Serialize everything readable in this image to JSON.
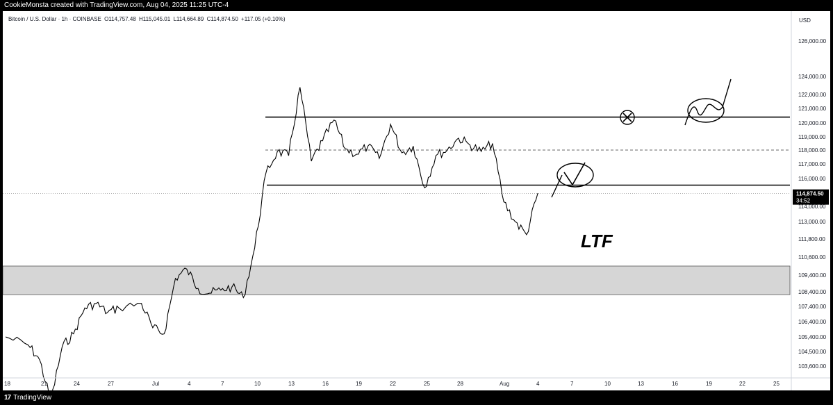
{
  "header": {
    "credit": "CookieMonsta created with TradingView.com, Aug 04, 2025 11:25 UTC-4"
  },
  "legend": {
    "symbol": "Bitcoin / U.S. Dollar · 1h · COINBASE",
    "open": "O114,757.48",
    "high": "H115,045.01",
    "low": "L114,664.89",
    "close": "C114,874.50",
    "change": "+117.05 (+0.10%)"
  },
  "footer": {
    "brand": "TradingView",
    "logo_mark": "17"
  },
  "annotation": {
    "ltf_label": "LTF"
  },
  "chart_data": {
    "type": "line",
    "title": "Bitcoin / U.S. Dollar · 1h · COINBASE",
    "currency_label": "USD",
    "y_ticks": [
      126000,
      124000,
      122000,
      121000,
      120000,
      119000,
      118000,
      117000,
      116000,
      115000,
      114000,
      113000,
      111800,
      110600,
      109400,
      108400,
      107400,
      106400,
      105400,
      104500,
      103600
    ],
    "y_tick_labels": [
      "126,000.00",
      "124,000.00",
      "122,000.00",
      "121,000.00",
      "120,000.00",
      "119,000.00",
      "118,000.00",
      "117,000.00",
      "116,000.00",
      "115,000.00",
      "114,000.00",
      "113,000.00",
      "111,800.00",
      "110,600.00",
      "109,400.00",
      "108,400.00",
      "107,400.00",
      "106,400.00",
      "105,400.00",
      "104,500.00",
      "103,600.00"
    ],
    "x_tick_labels": [
      "18",
      "21",
      "24",
      "27",
      "Jul",
      "4",
      "7",
      "10",
      "13",
      "16",
      "19",
      "22",
      "25",
      "28",
      "Aug",
      "4",
      "7",
      "10",
      "13",
      "16",
      "19",
      "22",
      "25"
    ],
    "price_series": [
      [
        "06-18",
        105400
      ],
      [
        "06-20",
        104900
      ],
      [
        "06-21",
        104000
      ],
      [
        "06-22",
        101500
      ],
      [
        "06-23",
        104800
      ],
      [
        "06-24",
        105600
      ],
      [
        "06-25",
        107300
      ],
      [
        "06-26",
        107600
      ],
      [
        "06-27",
        107000
      ],
      [
        "06-28",
        107300
      ],
      [
        "06-30",
        107600
      ],
      [
        "07-01",
        106000
      ],
      [
        "07-02",
        105600
      ],
      [
        "07-03",
        109200
      ],
      [
        "07-04",
        109800
      ],
      [
        "07-05",
        108600
      ],
      [
        "07-06",
        108300
      ],
      [
        "07-07",
        108500
      ],
      [
        "07-08",
        108700
      ],
      [
        "07-09",
        108000
      ],
      [
        "07-10",
        111200
      ],
      [
        "07-11",
        116400
      ],
      [
        "07-12",
        117900
      ],
      [
        "07-13",
        117600
      ],
      [
        "07-14",
        122800
      ],
      [
        "07-15",
        117200
      ],
      [
        "07-16",
        118700
      ],
      [
        "07-17",
        120200
      ],
      [
        "07-18",
        118100
      ],
      [
        "07-19",
        117700
      ],
      [
        "07-20",
        118300
      ],
      [
        "07-21",
        117400
      ],
      [
        "07-22",
        119900
      ],
      [
        "07-23",
        117800
      ],
      [
        "07-24",
        118300
      ],
      [
        "07-25",
        115300
      ],
      [
        "07-26",
        117600
      ],
      [
        "07-27",
        118000
      ],
      [
        "07-28",
        118900
      ],
      [
        "07-29",
        118400
      ],
      [
        "07-30",
        117900
      ],
      [
        "07-31",
        118500
      ],
      [
        "08-01",
        114300
      ],
      [
        "08-02",
        113000
      ],
      [
        "08-03",
        112100
      ],
      [
        "08-04",
        114900
      ]
    ],
    "current_price_label": "114,874.50",
    "countdown_label": "34:52",
    "levels": {
      "resistance": 120400,
      "mid_dashed": 118000,
      "support": 115500,
      "last_price_dotted": 114874.5
    },
    "demand_zone": {
      "from": 108200,
      "to": 110000
    },
    "grid": false
  },
  "colors": {
    "price_line": "#000000",
    "zone_fill": "#d6d6d6",
    "current_price_box": "#000000",
    "background": "#ffffff"
  }
}
